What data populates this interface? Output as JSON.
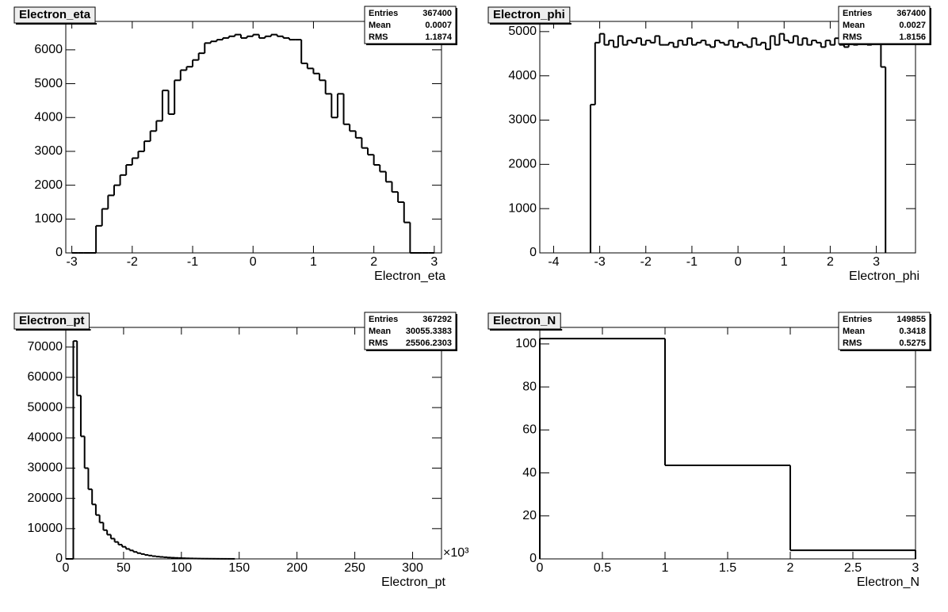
{
  "chart_data": [
    {
      "type": "histogram",
      "title": "Electron_eta",
      "x_label": "Electron_eta",
      "color": "#000000",
      "stats": [
        {
          "label": "Entries",
          "value": 367400
        },
        {
          "label": "Mean",
          "value": 0.0007
        },
        {
          "label": "RMS",
          "value": 1.1874
        }
      ],
      "bins": [
        -3.0,
        -2.9,
        -2.8,
        -2.7,
        -2.6,
        -2.5,
        -2.4,
        -2.3,
        -2.2,
        -2.1,
        -2.0,
        -1.9,
        -1.8,
        -1.7,
        -1.6,
        -1.5,
        -1.4,
        -1.3,
        -1.2,
        -1.1,
        -1.0,
        -0.9,
        -0.8,
        -0.7,
        -0.6,
        -0.5,
        -0.4,
        -0.3,
        -0.2,
        -0.1,
        0.0,
        0.1,
        0.2,
        0.3,
        0.4,
        0.5,
        0.6,
        0.7,
        0.8,
        0.9,
        1.0,
        1.1,
        1.2,
        1.3,
        1.4,
        1.5,
        1.6,
        1.7,
        1.8,
        1.9,
        2.0,
        2.1,
        2.2,
        2.3,
        2.4,
        2.5,
        2.6,
        2.7,
        2.8,
        2.9,
        3.0
      ],
      "values": [
        0,
        0,
        0,
        0,
        800,
        1300,
        1700,
        2000,
        2300,
        2600,
        2800,
        3000,
        3300,
        3600,
        3900,
        4800,
        4100,
        5100,
        5400,
        5500,
        5700,
        5900,
        6200,
        6250,
        6300,
        6350,
        6400,
        6450,
        6350,
        6400,
        6450,
        6350,
        6400,
        6450,
        6400,
        6350,
        6300,
        6300,
        5600,
        5450,
        5300,
        5100,
        4700,
        4000,
        4700,
        3800,
        3600,
        3400,
        3100,
        2900,
        2600,
        2400,
        2100,
        1800,
        1500,
        900,
        0,
        0,
        0,
        0
      ],
      "xlim": [
        -3.1,
        3.12
      ],
      "xticks": [
        -3,
        -2,
        -1,
        0,
        1,
        2,
        3
      ],
      "ylim": [
        0,
        6840
      ],
      "yticks": [
        0,
        1000,
        2000,
        3000,
        4000,
        5000,
        6000
      ]
    },
    {
      "type": "histogram",
      "title": "Electron_phi",
      "x_label": "Electron_phi",
      "color": "#000000",
      "stats": [
        {
          "label": "Entries",
          "value": 367400
        },
        {
          "label": "Mean",
          "value": 0.0027
        },
        {
          "label": "RMS",
          "value": 1.8156
        }
      ],
      "bins": [
        -3.2,
        -3.1,
        -3.0,
        -2.9,
        -2.8,
        -2.7,
        -2.6,
        -2.5,
        -2.4,
        -2.3,
        -2.2,
        -2.1,
        -2.0,
        -1.9,
        -1.8,
        -1.7,
        -1.6,
        -1.5,
        -1.4,
        -1.3,
        -1.2,
        -1.1,
        -1.0,
        -0.9,
        -0.8,
        -0.7,
        -0.6,
        -0.5,
        -0.4,
        -0.3,
        -0.2,
        -0.1,
        0.0,
        0.1,
        0.2,
        0.3,
        0.4,
        0.5,
        0.6,
        0.7,
        0.8,
        0.9,
        1.0,
        1.1,
        1.2,
        1.3,
        1.4,
        1.5,
        1.6,
        1.7,
        1.8,
        1.9,
        2.0,
        2.1,
        2.2,
        2.3,
        2.4,
        2.5,
        2.6,
        2.7,
        2.8,
        2.9,
        3.0,
        3.1,
        3.2
      ],
      "values": [
        3350,
        4750,
        4950,
        4700,
        4800,
        4650,
        4900,
        4700,
        4800,
        4750,
        4850,
        4700,
        4800,
        4750,
        4900,
        4700,
        4700,
        4750,
        4650,
        4800,
        4700,
        4850,
        4700,
        4750,
        4800,
        4700,
        4650,
        4800,
        4750,
        4700,
        4800,
        4650,
        4750,
        4700,
        4650,
        4850,
        4700,
        4750,
        4600,
        4900,
        4700,
        4950,
        4800,
        4750,
        4900,
        4700,
        4850,
        4700,
        4800,
        4750,
        4650,
        4800,
        4700,
        4850,
        4700,
        4650,
        4750,
        4700,
        4800,
        4750,
        4700,
        4800,
        4750,
        4200
      ],
      "xlim": [
        -4.3,
        3.85
      ],
      "xticks": [
        -4,
        -3,
        -2,
        -1,
        0,
        1,
        2,
        3
      ],
      "ylim": [
        0,
        5230
      ],
      "yticks": [
        0,
        1000,
        2000,
        3000,
        4000,
        5000
      ]
    },
    {
      "type": "histogram",
      "title": "Electron_pt",
      "x_label": "Electron_pt",
      "x_multiplier": "×10³",
      "color": "#000000",
      "stats": [
        {
          "label": "Entries",
          "value": 367292
        },
        {
          "label": "Mean",
          "value": 30055.3383
        },
        {
          "label": "RMS",
          "value": 25506.2303
        }
      ],
      "bins": [
        0,
        3.25,
        6.5,
        9.75,
        13,
        16.25,
        19.5,
        22.75,
        26,
        29.25,
        32.5,
        35.75,
        39,
        42.25,
        45.5,
        48.75,
        52,
        55.25,
        58.5,
        61.75,
        65,
        68.25,
        71.5,
        74.75,
        78,
        81.25,
        84.5,
        87.75,
        91,
        94.25,
        97.5,
        100.75,
        104,
        107.25,
        110.5,
        113.75,
        117,
        120.25,
        123.5,
        126.75,
        130,
        133.25,
        136.5,
        139.75,
        143,
        146.25
      ],
      "values": [
        0,
        0,
        72000,
        54000,
        40500,
        30000,
        23000,
        18000,
        14500,
        12000,
        9500,
        8000,
        6700,
        5600,
        4700,
        4000,
        3300,
        2800,
        2300,
        1900,
        1600,
        1300,
        1100,
        900,
        750,
        650,
        550,
        450,
        380,
        320,
        270,
        220,
        180,
        150,
        120,
        100,
        80,
        70,
        60,
        50,
        40,
        30,
        25,
        20,
        15
      ],
      "xlim": [
        0,
        325
      ],
      "xticks": [
        0,
        50,
        100,
        150,
        200,
        250,
        300
      ],
      "ylim": [
        0,
        76500
      ],
      "yticks": [
        0,
        10000,
        20000,
        30000,
        40000,
        50000,
        60000,
        70000
      ]
    },
    {
      "type": "histogram",
      "title": "Electron_N",
      "x_label": "Electron_N",
      "color": "#000000",
      "stats": [
        {
          "label": "Entries",
          "value": 149855
        },
        {
          "label": "Mean",
          "value": 0.3418
        },
        {
          "label": "RMS",
          "value": 0.5275
        }
      ],
      "bins": [
        0,
        1,
        2,
        3
      ],
      "values": [
        102.5,
        43.5,
        4
      ],
      "xlim": [
        0,
        3
      ],
      "xticks": [
        0,
        0.5,
        1,
        1.5,
        2,
        2.5,
        3
      ],
      "ylim": [
        0,
        107.7
      ],
      "yticks": [
        0,
        20,
        40,
        60,
        80,
        100
      ]
    }
  ]
}
